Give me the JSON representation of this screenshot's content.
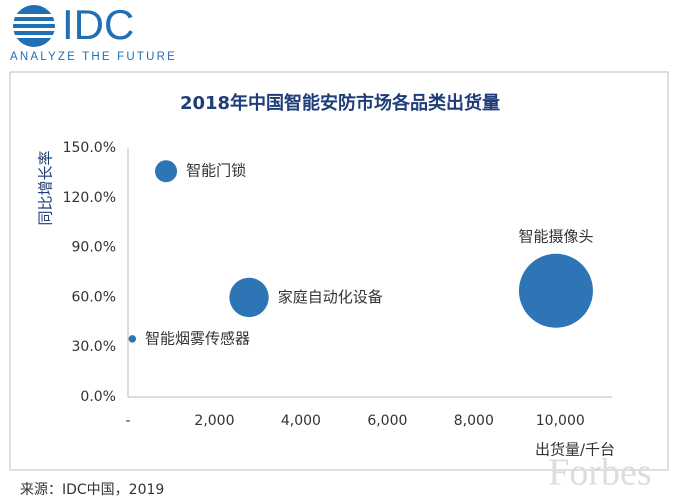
{
  "logo": {
    "name": "IDC",
    "tagline": "ANALYZE THE FUTURE"
  },
  "chart_data": {
    "type": "bubble",
    "title": "2018年中国智能安防市场各品类出货量",
    "x_label": "出货量/千台",
    "y_label": "同比增长率",
    "labels": [
      "智能门锁",
      "家庭自动化设备",
      "智能烟雾传感器",
      "智能摄像头"
    ],
    "x": [
      880,
      2800,
      100,
      9900
    ],
    "values": [
      136,
      60,
      35,
      64
    ],
    "sizes": [
      880,
      2800,
      100,
      9900
    ],
    "color": "#2e75b6",
    "xlim": [
      0,
      11000
    ],
    "ylim": [
      0,
      150
    ],
    "xticks": [
      {
        "value": 0,
        "label": "-"
      },
      {
        "value": 2000,
        "label": "2,000"
      },
      {
        "value": 4000,
        "label": "4,000"
      },
      {
        "value": 6000,
        "label": "6,000"
      },
      {
        "value": 8000,
        "label": "8,000"
      },
      {
        "value": 10000,
        "label": "10,000"
      }
    ],
    "yticks": [
      {
        "value": 0,
        "label": "0.0%"
      },
      {
        "value": 30,
        "label": "30.0%"
      },
      {
        "value": 60,
        "label": "60.0%"
      },
      {
        "value": 90,
        "label": "90.0%"
      },
      {
        "value": 120,
        "label": "120.0%"
      },
      {
        "value": 150,
        "label": "150.0%"
      }
    ]
  },
  "source": "来源：IDC中国，2019",
  "watermark": "Forbes"
}
